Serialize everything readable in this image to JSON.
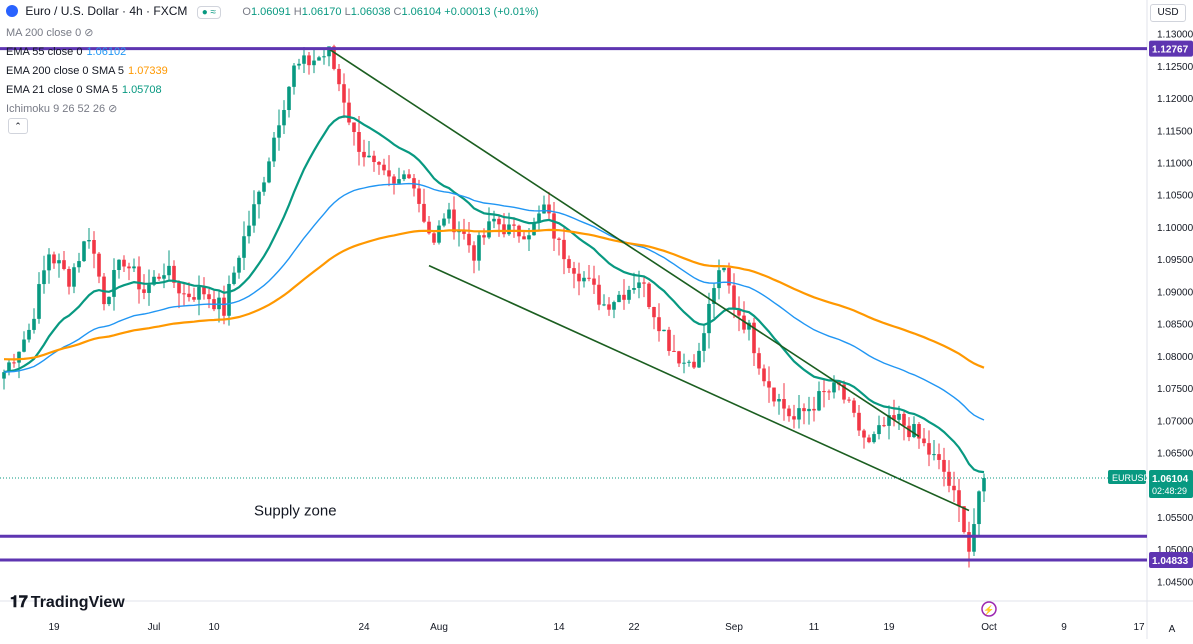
{
  "header": {
    "symbol_title": "Euro / U.S. Dollar · 4h · FXCM",
    "o_label": "O",
    "o_value": "1.06091",
    "h_label": "H",
    "h_value": "1.06170",
    "l_label": "L",
    "l_value": "1.06038",
    "c_label": "C",
    "c_value": "1.06104",
    "change": "+0.00013 (+0.01%)",
    "currency": "USD"
  },
  "indicators": [
    {
      "name": "MA 200 close 0",
      "value": "",
      "color": "#787b86",
      "hidden": true
    },
    {
      "name": "EMA 55 close 0",
      "value": "1.06102",
      "color": "#2196f3"
    },
    {
      "name": "EMA 200 close 0 SMA 5",
      "value": "1.07339",
      "color": "#ff9800"
    },
    {
      "name": "EMA 21 close 0 SMA 5",
      "value": "1.05708",
      "color": "#089981"
    },
    {
      "name": "Ichimoku 9 26 52 26",
      "value": "",
      "color": "#787b86",
      "hidden": true
    }
  ],
  "branding": {
    "logo_text": "TradingView"
  },
  "chart_data": {
    "type": "line",
    "title": "Euro / U.S. Dollar · 4h · FXCM",
    "timeframe": "4h",
    "y_axis": {
      "ticks": [
        "1.13000",
        "1.12500",
        "1.12000",
        "1.11500",
        "1.11000",
        "1.10500",
        "1.10000",
        "1.09500",
        "1.09000",
        "1.08500",
        "1.08000",
        "1.07500",
        "1.07000",
        "1.06500",
        "1.06000",
        "1.05500",
        "1.05000",
        "1.04500"
      ],
      "range": [
        1.0432,
        1.1318
      ],
      "side": "right"
    },
    "x_axis": {
      "ticks": [
        {
          "label": "19",
          "bar": 10
        },
        {
          "label": "Jul",
          "bar": 30
        },
        {
          "label": "10",
          "bar": 42
        },
        {
          "label": "24",
          "bar": 72
        },
        {
          "label": "Aug",
          "bar": 87
        },
        {
          "label": "14",
          "bar": 111
        },
        {
          "label": "22",
          "bar": 126
        },
        {
          "label": "Sep",
          "bar": 146
        },
        {
          "label": "11",
          "bar": 162
        },
        {
          "label": "19",
          "bar": 177
        },
        {
          "label": "Oct",
          "bar": 197
        },
        {
          "label": "9",
          "bar": 212
        },
        {
          "label": "17",
          "bar": 227
        }
      ]
    },
    "price_anchors": [
      [
        0,
        1.0775
      ],
      [
        5,
        1.084
      ],
      [
        9,
        1.096
      ],
      [
        13,
        1.092
      ],
      [
        17,
        1.099
      ],
      [
        20,
        1.089
      ],
      [
        24,
        1.095
      ],
      [
        28,
        1.09
      ],
      [
        32,
        1.0935
      ],
      [
        36,
        1.0895
      ],
      [
        40,
        1.09
      ],
      [
        44,
        1.087
      ],
      [
        47,
        1.096
      ],
      [
        51,
        1.105
      ],
      [
        55,
        1.117
      ],
      [
        58,
        1.1245
      ],
      [
        62,
        1.126
      ],
      [
        65,
        1.127
      ],
      [
        68,
        1.12
      ],
      [
        70,
        1.114
      ],
      [
        74,
        1.109
      ],
      [
        78,
        1.106
      ],
      [
        81,
        1.109
      ],
      [
        83,
        1.104
      ],
      [
        86,
        1.097
      ],
      [
        88,
        1.102
      ],
      [
        91,
        1.1
      ],
      [
        94,
        1.096
      ],
      [
        98,
        1.101
      ],
      [
        102,
        1.099
      ],
      [
        106,
        1.1
      ],
      [
        108,
        1.103
      ],
      [
        111,
        1.097
      ],
      [
        114,
        1.094
      ],
      [
        117,
        1.091
      ],
      [
        120,
        1.088
      ],
      [
        124,
        1.09
      ],
      [
        127,
        1.092
      ],
      [
        130,
        1.087
      ],
      [
        133,
        1.082
      ],
      [
        136,
        1.079
      ],
      [
        139,
        1.08
      ],
      [
        142,
        1.091
      ],
      [
        144,
        1.093
      ],
      [
        146,
        1.088
      ],
      [
        149,
        1.084
      ],
      [
        152,
        1.077
      ],
      [
        155,
        1.073
      ],
      [
        158,
        1.07
      ],
      [
        161,
        1.072
      ],
      [
        164,
        1.074
      ],
      [
        167,
        1.075
      ],
      [
        170,
        1.07
      ],
      [
        173,
        1.066
      ],
      [
        176,
        1.069
      ],
      [
        179,
        1.07
      ],
      [
        182,
        1.068
      ],
      [
        185,
        1.065
      ],
      [
        188,
        1.062
      ],
      [
        190,
        1.058
      ],
      [
        192,
        1.054
      ],
      [
        193,
        1.05
      ],
      [
        194,
        1.054
      ],
      [
        195,
        1.0575
      ],
      [
        196,
        1.061
      ]
    ],
    "candles": {
      "count": 197,
      "up_color": "#089981",
      "down_color": "#f23645"
    },
    "series": [
      {
        "name": "EMA 21",
        "color": "#089981",
        "period": 21,
        "last": 1.05708
      },
      {
        "name": "EMA 55",
        "color": "#2196f3",
        "period": 55,
        "last": 1.06102
      },
      {
        "name": "EMA 200",
        "color": "#ff9800",
        "period": 200,
        "last": 1.07339
      }
    ],
    "trendlines": [
      {
        "name": "upper",
        "color": "#1b5e20",
        "from": [
          65,
          1.1276
        ],
        "to": [
          183,
          1.0675
        ]
      },
      {
        "name": "lower",
        "color": "#1b5e20",
        "from": [
          85,
          1.094
        ],
        "to": [
          193,
          1.056
        ]
      }
    ],
    "horizontal_levels": [
      {
        "name": "resistance",
        "price": 1.12767,
        "label": "1.12767",
        "color": "#5e35b1"
      },
      {
        "name": "supply-zone-top",
        "price": 1.052,
        "color": "#5e35b1"
      },
      {
        "name": "supply-zone-bottom",
        "price": 1.04833,
        "label": "1.04833",
        "color": "#5e35b1"
      }
    ],
    "annotations": [
      {
        "text": "Supply zone",
        "bar": 62,
        "price": 1.054
      }
    ],
    "last_price": {
      "label": "EURUSD",
      "price": "1.06104",
      "countdown": "02:48:29",
      "color": "#089981"
    }
  }
}
